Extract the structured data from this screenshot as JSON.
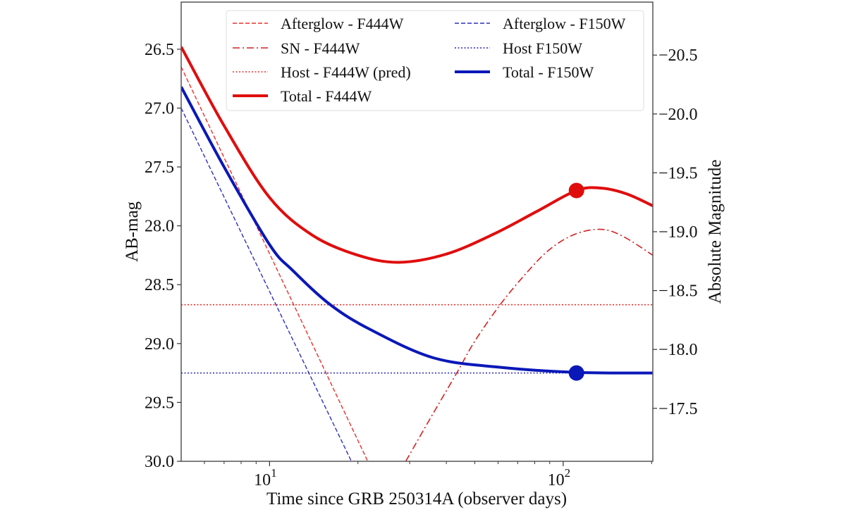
{
  "chart_data": {
    "type": "line",
    "xlabel": "Time since GRB 250314A (observer days)",
    "ylabel": "AB-mag",
    "y2label": "Absolute Magnitude",
    "xscale": "log",
    "xlim": [
      5,
      202
    ],
    "ylim": [
      30.0,
      26.1
    ],
    "y_inverted": true,
    "y2_offset": -47.05,
    "x_ticks": [
      {
        "value": 10,
        "base": "10",
        "exp": "1"
      },
      {
        "value": 100,
        "base": "10",
        "exp": "2"
      }
    ],
    "y_ticks": [
      "26.5",
      "27.0",
      "27.5",
      "28.0",
      "28.5",
      "29.0",
      "29.5",
      "30.0"
    ],
    "y2_ticks": [
      "−20.5",
      "−20.0",
      "−19.5",
      "−19.0",
      "−18.5",
      "−18.0",
      "−17.5"
    ],
    "y2_tick_values": [
      -20.5,
      -20.0,
      -19.5,
      -19.0,
      -18.5,
      -18.0,
      -17.5
    ],
    "grid": false,
    "legend_placement": "top",
    "series": [
      {
        "name": "Afterglow - F444W",
        "color": "#e8312b",
        "style": "dashed",
        "width": 1.4,
        "x": [
          5,
          21.6
        ],
        "y": [
          26.65,
          30.0
        ]
      },
      {
        "name": "SN - F444W",
        "color": "#d42020",
        "style": "dashdot",
        "width": 1.6,
        "x": [
          29.1,
          35,
          43.4,
          50,
          61,
          75,
          90,
          110,
          135,
          160,
          202
        ],
        "y": [
          30.0,
          29.65,
          29.25,
          28.98,
          28.67,
          28.4,
          28.2,
          28.07,
          28.03,
          28.09,
          28.25
        ]
      },
      {
        "name": "Host - F444W (pred)",
        "color": "#e8312b",
        "style": "dotted",
        "width": 1.6,
        "x": [
          5,
          202
        ],
        "y": [
          28.67,
          28.67
        ]
      },
      {
        "name": "Total - F444W",
        "color": "#e00d0d",
        "style": "solid",
        "width": 4,
        "x": [
          5,
          7,
          10,
          14,
          20,
          27.6,
          40,
          58,
          81,
          111,
          135,
          165,
          202
        ],
        "y": [
          26.48,
          27.15,
          27.76,
          28.08,
          28.25,
          28.31,
          28.24,
          28.07,
          27.88,
          27.7,
          27.68,
          27.73,
          27.83
        ]
      },
      {
        "name": "Afterglow - F150W",
        "color": "#2f2fc0",
        "style": "dashed",
        "width": 1.4,
        "x": [
          5,
          19.0
        ],
        "y": [
          27.0,
          30.0
        ]
      },
      {
        "name": "Host F150W",
        "color": "#2525b0",
        "style": "dotted",
        "width": 1.6,
        "x": [
          5,
          202
        ],
        "y": [
          29.25,
          29.25
        ]
      },
      {
        "name": "Total - F150W",
        "color": "#0a18b8",
        "style": "solid",
        "width": 4,
        "x": [
          5,
          7,
          10,
          12,
          16.1,
          22,
          36,
          60,
          111,
          202
        ],
        "y": [
          26.82,
          27.5,
          28.16,
          28.38,
          28.67,
          28.88,
          29.12,
          29.2,
          29.245,
          29.25
        ]
      }
    ],
    "points": [
      {
        "x": 111,
        "y": 27.7,
        "color": "#e00d0d"
      },
      {
        "x": 111,
        "y": 29.25,
        "color": "#0a18b8"
      }
    ]
  }
}
